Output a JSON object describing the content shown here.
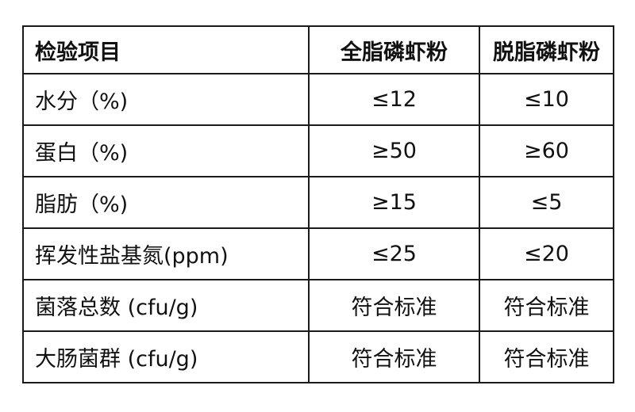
{
  "table": {
    "headers": [
      "检验项目",
      "全脂磷虾粉",
      "脱脂磷虾粉"
    ],
    "rows": [
      [
        "水分（%)",
        "≤12",
        "≤10"
      ],
      [
        "蛋白（%)",
        "≥50",
        "≥60"
      ],
      [
        "脂肪（%)",
        "≥15",
        "≤5"
      ],
      [
        "挥发性盐基氮(ppm)",
        "≤25",
        "≤20"
      ],
      [
        "菌落总数 (cfu/g)",
        "符合标准",
        "符合标准"
      ],
      [
        "大肠菌群 (cfu/g)",
        "符合标准",
        "符合标准"
      ]
    ]
  }
}
